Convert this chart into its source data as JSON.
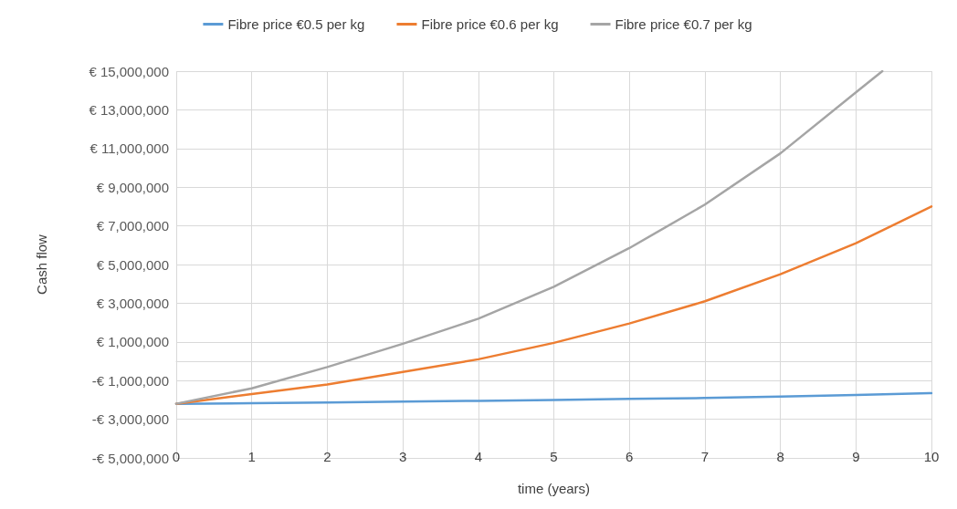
{
  "chart_data": {
    "type": "line",
    "xlabel": "time (years)",
    "ylabel": "Cash flow",
    "legend": "top",
    "grid": true,
    "marker": "none",
    "line_style": "solid",
    "xlim": [
      0,
      10
    ],
    "xticks": [
      0,
      1,
      2,
      3,
      4,
      5,
      6,
      7,
      8,
      9,
      10
    ],
    "ylim": [
      -5000000,
      15000000
    ],
    "yticks": [
      {
        "value": -5000000,
        "label": "-€ 5,000,000"
      },
      {
        "value": -3000000,
        "label": "-€ 3,000,000"
      },
      {
        "value": -1000000,
        "label": "-€ 1,000,000"
      },
      {
        "value": 1000000,
        "label": "€ 1,000,000"
      },
      {
        "value": 3000000,
        "label": "€ 3,000,000"
      },
      {
        "value": 5000000,
        "label": "€ 5,000,000"
      },
      {
        "value": 7000000,
        "label": "€ 7,000,000"
      },
      {
        "value": 9000000,
        "label": "€ 9,000,000"
      },
      {
        "value": 11000000,
        "label": "€ 11,000,000"
      },
      {
        "value": 13000000,
        "label": "€ 13,000,000"
      },
      {
        "value": 15000000,
        "label": "€ 15,000,000"
      }
    ],
    "series": [
      {
        "name": "Fibre price €0.5 per kg",
        "color": "#5b9bd5",
        "x": [
          0,
          1,
          2,
          3,
          4,
          5,
          6,
          7,
          8,
          9,
          10
        ],
        "values": [
          -2200000,
          -2170000,
          -2130000,
          -2090000,
          -2050000,
          -2000000,
          -1950000,
          -1900000,
          -1830000,
          -1750000,
          -1650000
        ]
      },
      {
        "name": "Fibre price €0.6 per kg",
        "color": "#ed7d31",
        "x": [
          0,
          1,
          2,
          3,
          4,
          5,
          6,
          7,
          8,
          9,
          10
        ],
        "values": [
          -2200000,
          -1700000,
          -1200000,
          -550000,
          100000,
          950000,
          1950000,
          3100000,
          4500000,
          6100000,
          8000000
        ]
      },
      {
        "name": "Fibre price €0.7 per kg",
        "color": "#a5a5a5",
        "x": [
          0,
          1,
          2,
          3,
          4,
          5,
          6,
          7,
          8,
          9,
          9.35
        ],
        "values": [
          -2200000,
          -1400000,
          -300000,
          900000,
          2200000,
          3850000,
          5850000,
          8100000,
          10750000,
          13900000,
          15000000
        ]
      }
    ]
  }
}
